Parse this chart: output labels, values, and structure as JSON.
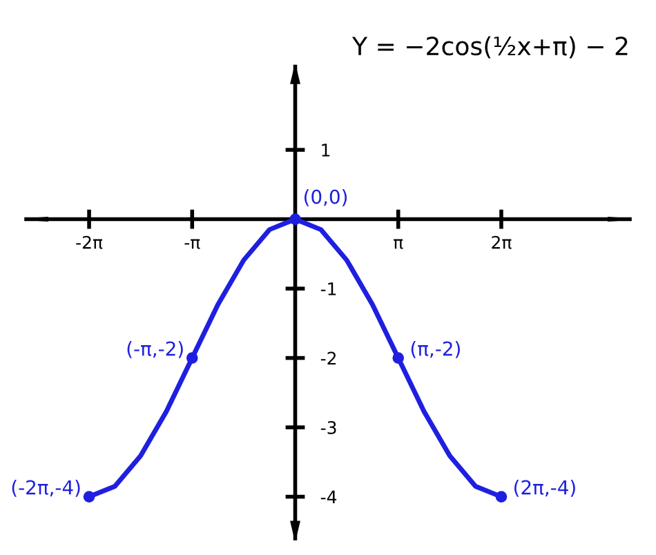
{
  "chart_data": {
    "type": "line",
    "title": "Y = −2cos(½x+π) − 2",
    "xlim": [
      -8.2,
      10.2
    ],
    "ylim": [
      -4.6,
      2.2
    ],
    "xticks": [
      {
        "value": -6.2832,
        "label": "-2π"
      },
      {
        "value": -3.1416,
        "label": "-π"
      },
      {
        "value": 3.1416,
        "label": "π"
      },
      {
        "value": 6.2832,
        "label": "2π"
      }
    ],
    "yticks": [
      {
        "value": 1,
        "label": "1"
      },
      {
        "value": -1,
        "label": "-1"
      },
      {
        "value": -2,
        "label": "-2"
      },
      {
        "value": -3,
        "label": "-3"
      },
      {
        "value": -4,
        "label": "-4"
      }
    ],
    "grid": false,
    "legend": false,
    "series": [
      {
        "color": "#1f1fe0",
        "marker": "none",
        "line_style": "solid",
        "x": [
          -6.2832,
          -5.4978,
          -4.7124,
          -3.927,
          -3.1416,
          -2.3562,
          -1.5708,
          -0.7854,
          0,
          0.7854,
          1.5708,
          2.3562,
          3.1416,
          3.927,
          4.7124,
          5.4978,
          6.2832
        ],
        "values": [
          -4,
          -3.85,
          -3.41,
          -2.77,
          -2,
          -1.23,
          -0.59,
          -0.15,
          0,
          -0.15,
          -0.59,
          -1.23,
          -2,
          -2.77,
          -3.41,
          -3.85,
          -4
        ]
      },
      {
        "type": "scatter",
        "color": "#1f1fe0",
        "marker": "circle",
        "x": [
          -6.2832,
          -3.1416,
          0,
          3.1416,
          6.2832
        ],
        "values": [
          -4,
          -2,
          0,
          -2,
          -4
        ]
      }
    ],
    "annotations": [
      {
        "text": "(0,0)",
        "x": 0,
        "y": 0
      },
      {
        "text": "(-π,-2)",
        "x": -3.1416,
        "y": -2
      },
      {
        "text": "(π,-2)",
        "x": 3.1416,
        "y": -2
      },
      {
        "text": "(-2π,-4)",
        "x": -6.2832,
        "y": -4
      },
      {
        "text": "(2π,-4)",
        "x": 6.2832,
        "y": -4
      }
    ]
  }
}
